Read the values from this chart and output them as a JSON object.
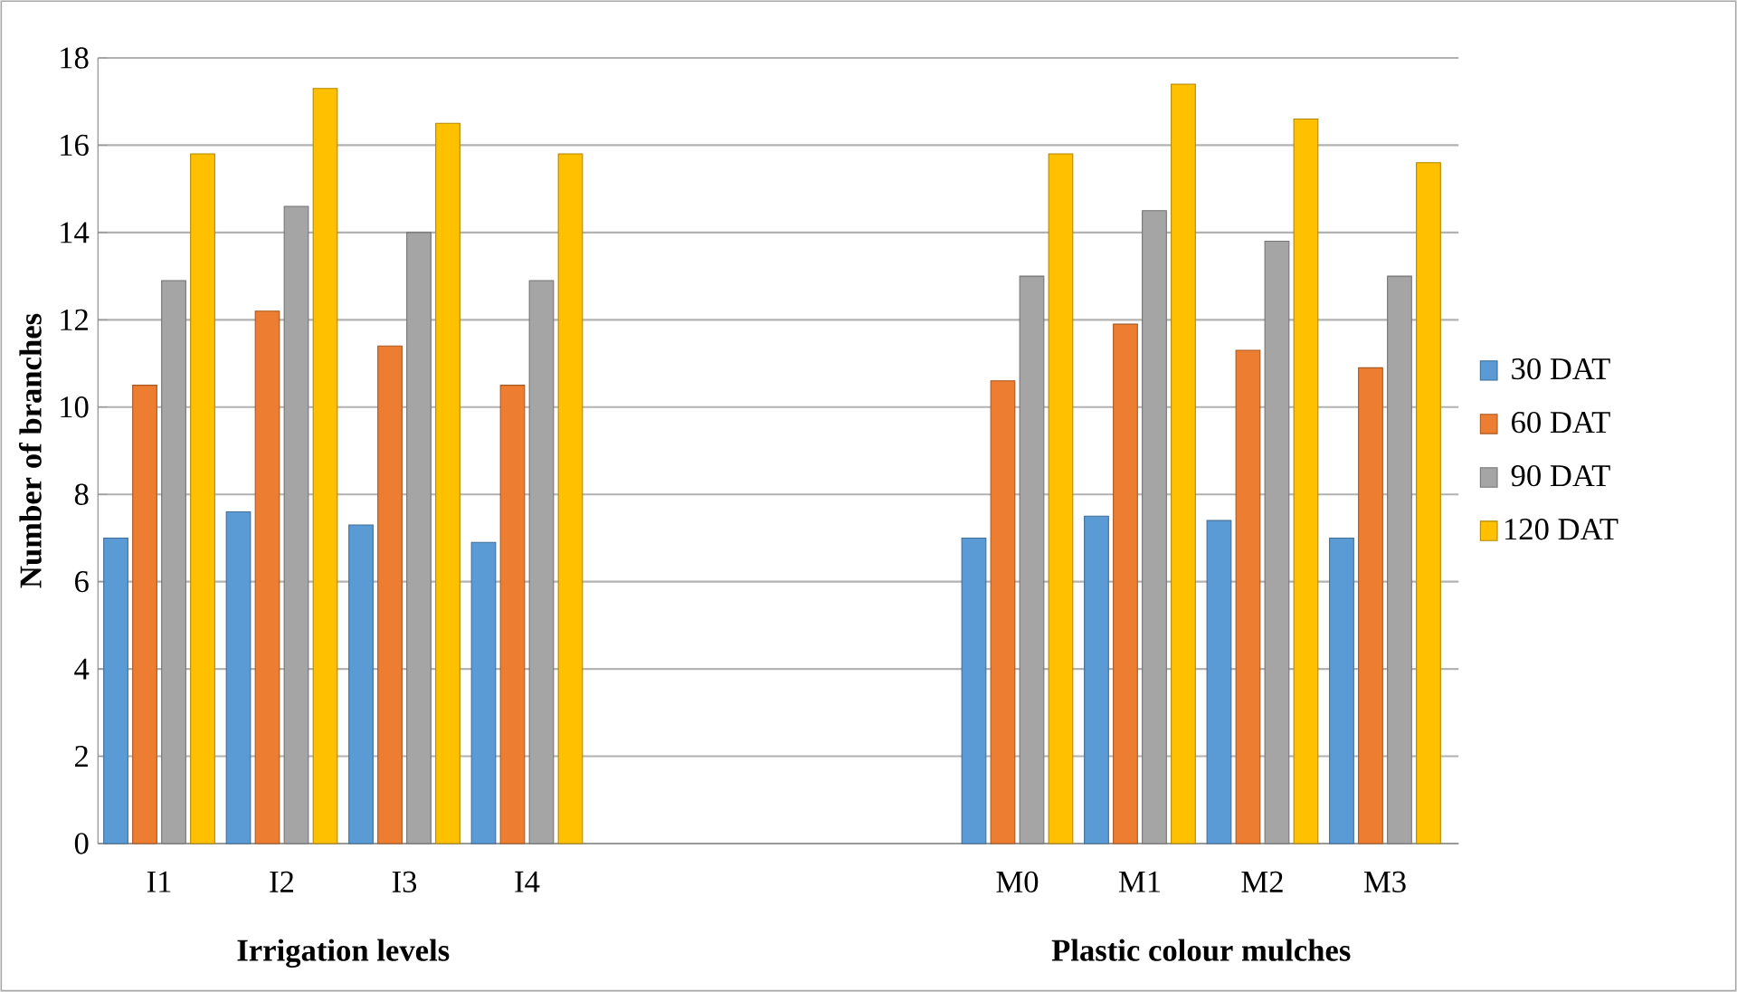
{
  "chart_data": {
    "type": "bar",
    "ylabel": "Number of branches",
    "categories": [
      "I1",
      "I2",
      "I3",
      "I4",
      null,
      null,
      null,
      "M0",
      "M1",
      "M2",
      "M3"
    ],
    "series": [
      {
        "name": "30 DAT",
        "color": "#5b9bd5",
        "values": [
          7.0,
          7.6,
          7.3,
          6.9,
          null,
          null,
          null,
          7.0,
          7.5,
          7.4,
          7.0
        ]
      },
      {
        "name": "60 DAT",
        "color": "#ed7d31",
        "values": [
          10.5,
          12.2,
          11.4,
          10.5,
          null,
          null,
          null,
          10.6,
          11.9,
          11.3,
          10.9
        ]
      },
      {
        "name": "90 DAT",
        "color": "#a5a5a5",
        "values": [
          12.9,
          14.6,
          14.0,
          12.9,
          null,
          null,
          null,
          13.0,
          14.5,
          13.8,
          13.0
        ]
      },
      {
        "name": "120 DAT",
        "color": "#ffc000",
        "values": [
          15.8,
          17.3,
          16.5,
          15.8,
          null,
          null,
          null,
          15.8,
          17.4,
          16.6,
          15.6
        ]
      }
    ],
    "ylim": [
      0,
      18
    ],
    "yticks": [
      0,
      2,
      4,
      6,
      8,
      10,
      12,
      14,
      16,
      18
    ],
    "grid": "y",
    "legend": "right",
    "annotations": [
      "Irrigation levels",
      "Plastic colour mulches"
    ]
  }
}
